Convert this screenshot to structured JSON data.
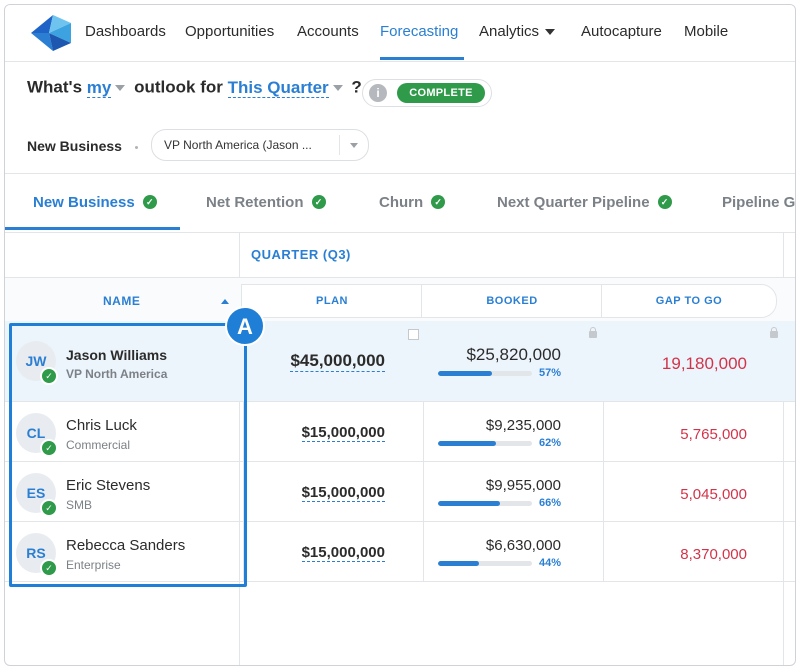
{
  "nav": {
    "items": [
      "Dashboards",
      "Opportunities",
      "Accounts",
      "Forecasting",
      "Analytics",
      "Autocapture",
      "Mobile"
    ],
    "active": "Forecasting"
  },
  "outlook": {
    "prefix": "What's",
    "who": "my",
    "middle": "outlook for",
    "period": "This Quarter",
    "suffix": "?",
    "info_icon": "i",
    "status": "COMPLETE"
  },
  "filter": {
    "hierarchy_label": "New Business",
    "select_value": "VP North America (Jason ..."
  },
  "tabs": [
    {
      "label": "New Business",
      "complete": true
    },
    {
      "label": "Net Retention",
      "complete": true
    },
    {
      "label": "Churn",
      "complete": true
    },
    {
      "label": "Next Quarter Pipeline",
      "complete": true
    },
    {
      "label": "Pipeline Ge",
      "complete": false
    }
  ],
  "table": {
    "group_header": "QUARTER (Q3)",
    "columns": {
      "name": "NAME",
      "plan": "PLAN",
      "booked": "BOOKED",
      "gap": "GAP TO GO"
    },
    "rows": [
      {
        "initials": "JW",
        "name": "Jason Williams",
        "role": "VP North America",
        "plan": "$45,000,000",
        "booked": "$25,820,000",
        "pct_label": "57%",
        "progress": 0.57,
        "gap": "19,180,000"
      },
      {
        "initials": "CL",
        "name": "Chris Luck",
        "role": "Commercial",
        "plan": "$15,000,000",
        "booked": "$9,235,000",
        "pct_label": "62%",
        "progress": 0.62,
        "gap": "5,765,000"
      },
      {
        "initials": "ES",
        "name": "Eric Stevens",
        "role": "SMB",
        "plan": "$15,000,000",
        "booked": "$9,955,000",
        "pct_label": "66%",
        "progress": 0.66,
        "gap": "5,045,000"
      },
      {
        "initials": "RS",
        "name": "Rebecca Sanders",
        "role": "Enterprise",
        "plan": "$15,000,000",
        "booked": "$6,630,000",
        "pct_label": "44%",
        "progress": 0.44,
        "gap": "8,370,000"
      }
    ]
  },
  "annotation": {
    "label": "A"
  },
  "colors": {
    "accent": "#2a7fd3",
    "success": "#2e9a4a",
    "gap_red": "#d1344a"
  }
}
